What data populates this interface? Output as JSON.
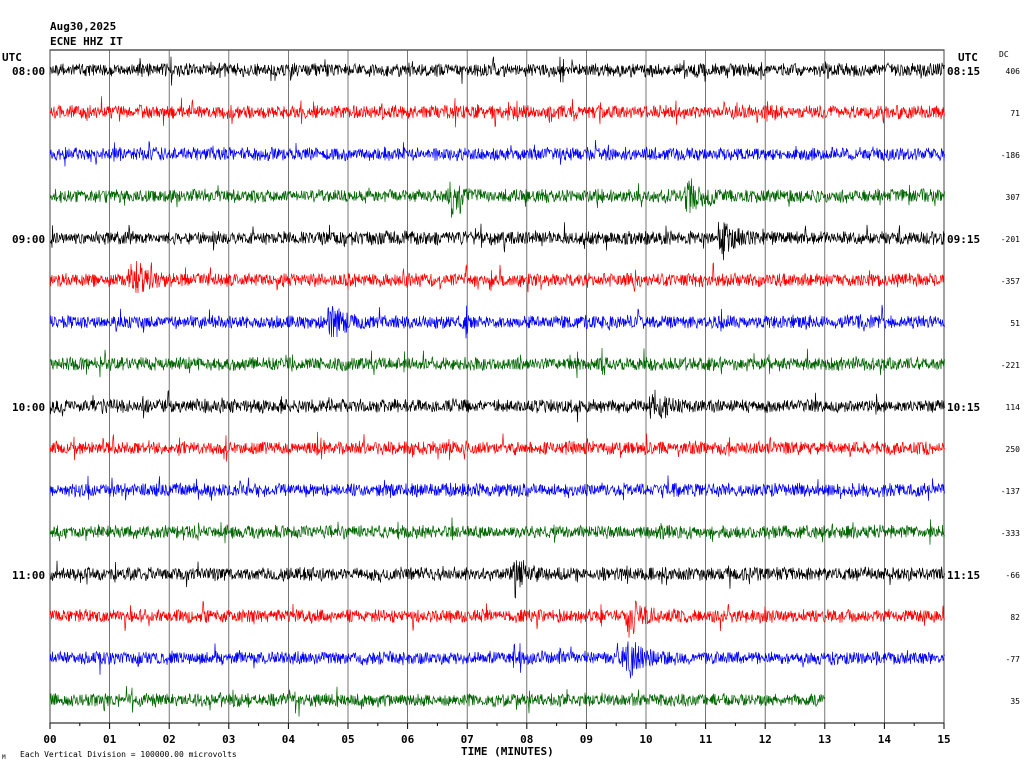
{
  "header": {
    "date": "Aug30,2025",
    "station": "ECNE HHZ IT",
    "left_tz": "UTC",
    "right_tz": "UTC",
    "dc_label": "DC"
  },
  "footer": {
    "scale_note": "Each Vertical Division = 100000.00 microvolts",
    "corner_mark": "M"
  },
  "chart_data": {
    "type": "line",
    "title": "",
    "xlabel": "TIME (MINUTES)",
    "ylabel": "",
    "xlim": [
      0,
      15
    ],
    "x_ticks": [
      "00",
      "01",
      "02",
      "03",
      "04",
      "05",
      "06",
      "07",
      "08",
      "09",
      "10",
      "11",
      "12",
      "13",
      "14",
      "15"
    ],
    "grid": "vertical lines each minute",
    "row_colors": [
      "#000000",
      "#ff0000",
      "#0000ff",
      "#006400"
    ],
    "left_hour_labels": [
      {
        "row": 0,
        "label": "08:00"
      },
      {
        "row": 4,
        "label": "09:00"
      },
      {
        "row": 8,
        "label": "10:00"
      },
      {
        "row": 12,
        "label": "11:00"
      }
    ],
    "right_labels": [
      {
        "row": 0,
        "label": "08:15"
      },
      {
        "row": 4,
        "label": "09:15"
      },
      {
        "row": 8,
        "label": "10:15"
      },
      {
        "row": 12,
        "label": "11:15"
      }
    ],
    "dc_offsets": [
      "406",
      "71",
      "-186",
      "307",
      "-201",
      "-357",
      "51",
      "-221",
      "114",
      "250",
      "-137",
      "-333",
      "-66",
      "82",
      "-77",
      "35"
    ],
    "last_row_end_minute": 13,
    "events": [
      {
        "row": 3,
        "minute": 6.7
      },
      {
        "row": 3,
        "minute": 10.7
      },
      {
        "row": 4,
        "minute": 11.25
      },
      {
        "row": 5,
        "minute": 1.4
      },
      {
        "row": 6,
        "minute": 4.7
      },
      {
        "row": 8,
        "minute": 10.1
      },
      {
        "row": 12,
        "minute": 7.8
      },
      {
        "row": 13,
        "minute": 9.7
      },
      {
        "row": 14,
        "minute": 9.7
      }
    ]
  }
}
